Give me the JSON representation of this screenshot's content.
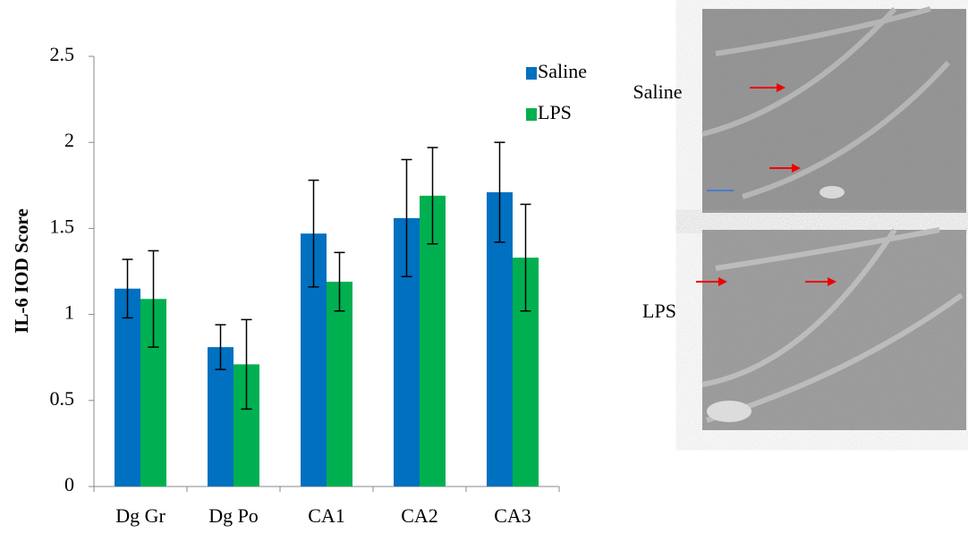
{
  "chart_data": {
    "type": "bar",
    "y_label": "IL-6 IOD Score",
    "categories": [
      "Dg Gr",
      "Dg Po",
      "CA1",
      "CA2",
      "CA3"
    ],
    "series": [
      {
        "name": "Saline",
        "color": "#0070c0",
        "values": [
          1.15,
          0.81,
          1.47,
          1.56,
          1.71
        ],
        "errors": [
          0.17,
          0.13,
          0.31,
          0.34,
          0.29
        ]
      },
      {
        "name": "LPS",
        "color": "#00b050",
        "values": [
          1.09,
          0.71,
          1.19,
          1.69,
          1.33
        ],
        "errors": [
          0.28,
          0.26,
          0.17,
          0.28,
          0.31
        ]
      }
    ],
    "ylim": [
      0,
      2.5
    ],
    "yticks": [
      0,
      0.5,
      1,
      1.5,
      2,
      2.5
    ],
    "grid": false
  },
  "images": {
    "labels": [
      "Saline",
      "LPS"
    ]
  }
}
